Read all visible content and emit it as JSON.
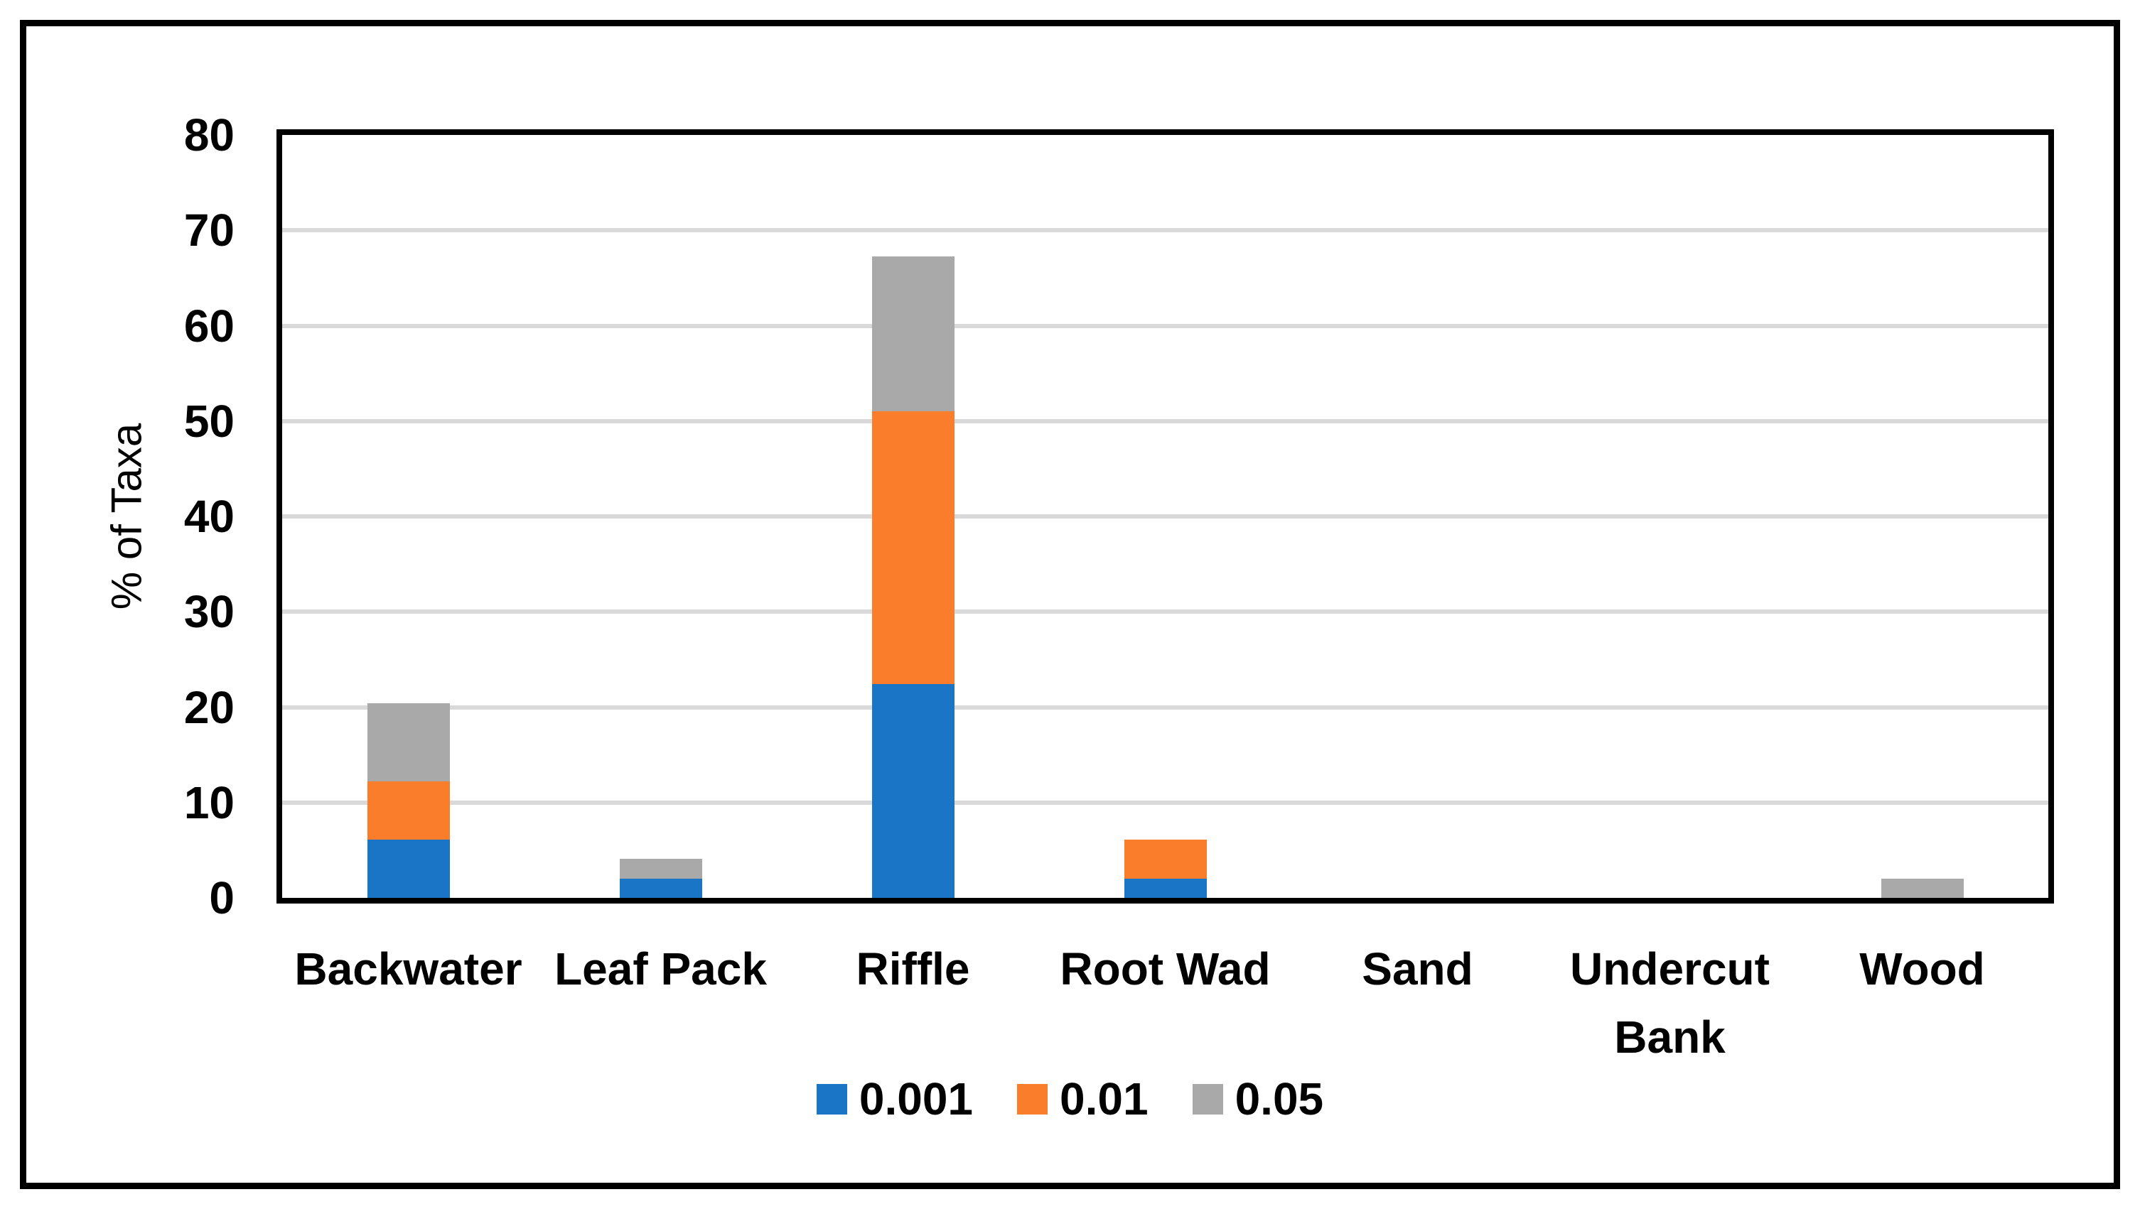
{
  "chart_data": {
    "type": "bar",
    "stacked": true,
    "title": "",
    "xlabel": "",
    "ylabel": "% of Taxa",
    "ylim": [
      0,
      80
    ],
    "yticks": [
      0,
      10,
      20,
      30,
      40,
      50,
      60,
      70,
      80
    ],
    "grid": "horizontal",
    "legend_position": "bottom",
    "categories": [
      "Backwater",
      "Leaf Pack",
      "Riffle",
      "Root Wad",
      "Sand",
      "Undercut Bank",
      "Wood"
    ],
    "series": [
      {
        "name": "0.001",
        "color": "#1B75C6",
        "values": [
          6.1,
          2.0,
          22.4,
          2.0,
          0,
          0,
          0
        ]
      },
      {
        "name": "0.01",
        "color": "#F97D2A",
        "values": [
          6.1,
          0,
          28.6,
          4.1,
          0,
          0,
          0
        ]
      },
      {
        "name": "0.05",
        "color": "#A9A9A9",
        "values": [
          8.2,
          2.1,
          16.3,
          0,
          0,
          0,
          2.0
        ]
      }
    ],
    "colors": {
      "axis_and_frame": "#000000",
      "gridline": "#D9D9D9",
      "background": "#FFFFFF",
      "text": "#000000"
    }
  }
}
